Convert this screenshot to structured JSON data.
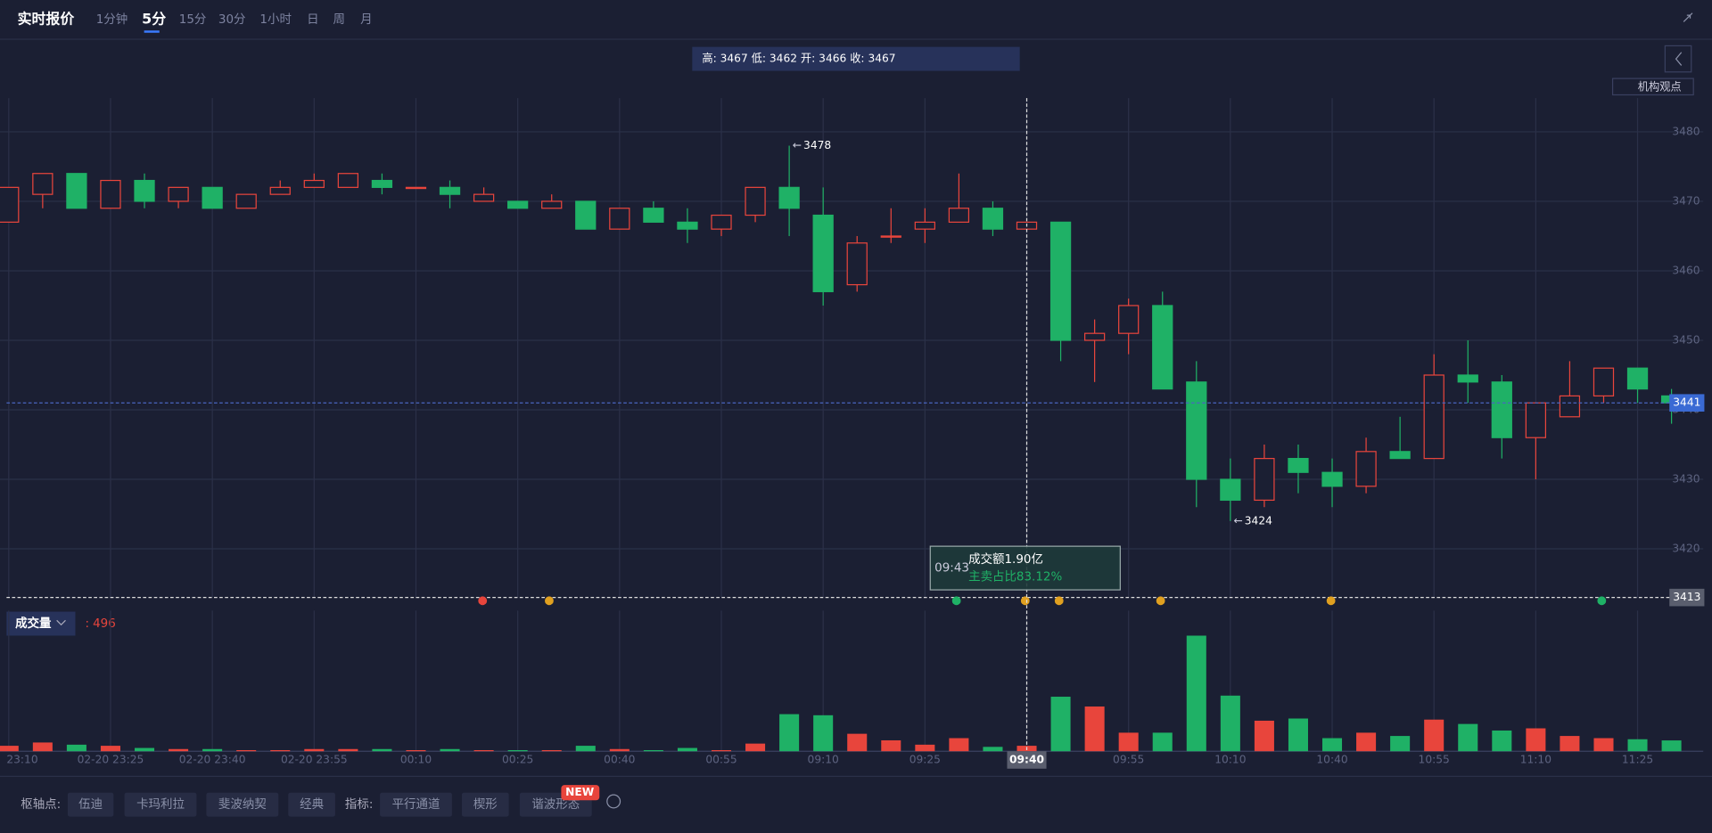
{
  "header": {
    "title": "实时报价",
    "periods": [
      "1分钟",
      "5分",
      "15分",
      "30分",
      "1小时",
      "日",
      "周",
      "月"
    ],
    "ohlc_box": "高: 3467 低: 3462 开: 3466 收: 3467",
    "views": "机构观点"
  },
  "chart_data": {
    "type": "candlestick",
    "categories": [
      "23:10",
      null,
      null,
      "02-20 23:25",
      null,
      null,
      "02-20 23:40",
      null,
      null,
      "02-20 23:55",
      null,
      null,
      "00:10",
      null,
      null,
      "00:25",
      null,
      null,
      "00:40",
      null,
      null,
      "00:55",
      null,
      null,
      "09:10",
      null,
      null,
      "09:25",
      null,
      null,
      "09:40",
      null,
      null,
      "09:55",
      null,
      null,
      "10:10",
      null,
      null,
      "10:40",
      null,
      null,
      "10:55",
      null,
      null,
      "11:10",
      null,
      null,
      "11:25",
      null
    ],
    "open": [
      3467,
      3471,
      3474,
      3469,
      3473,
      3470,
      3472,
      3469,
      3471,
      3472,
      3472,
      3473,
      3472,
      3472,
      3470,
      3470,
      3469,
      3470,
      3466,
      3469,
      3467,
      3466,
      3468,
      3472,
      3468,
      3458,
      3465,
      3466,
      3467,
      3469,
      3466,
      3467,
      3450,
      3451,
      3455,
      3444,
      3430,
      3427,
      3433,
      3431,
      3429,
      3434,
      3433,
      3445,
      3444,
      3436,
      3439,
      3442,
      3446,
      3442
    ],
    "high": [
      3472,
      3474,
      3474,
      3473,
      3474,
      3472,
      3472,
      3471,
      3473,
      3474,
      3474,
      3474,
      3472,
      3473,
      3472,
      3470,
      3471,
      3470,
      3469,
      3470,
      3469,
      3468,
      3472,
      3478,
      3472,
      3465,
      3469,
      3469,
      3474,
      3470,
      3467,
      3467,
      3453,
      3456,
      3457,
      3447,
      3433,
      3435,
      3435,
      3433,
      3436,
      3439,
      3448,
      3450,
      3445,
      3441,
      3447,
      3446,
      3446,
      3443
    ],
    "low": [
      3467,
      3469,
      3469,
      3469,
      3469,
      3469,
      3469,
      3469,
      3471,
      3472,
      3472,
      3471,
      3472,
      3469,
      3470,
      3469,
      3469,
      3466,
      3466,
      3467,
      3464,
      3465,
      3467,
      3465,
      3455,
      3457,
      3464,
      3464,
      3467,
      3465,
      3466,
      3447,
      3444,
      3448,
      3443,
      3426,
      3424,
      3426,
      3428,
      3426,
      3428,
      3433,
      3433,
      3441,
      3433,
      3430,
      3439,
      3441,
      3441,
      3438
    ],
    "close": [
      3472,
      3474,
      3469,
      3473,
      3470,
      3472,
      3469,
      3471,
      3472,
      3473,
      3474,
      3472,
      3472,
      3471,
      3471,
      3469,
      3470,
      3466,
      3469,
      3467,
      3466,
      3468,
      3472,
      3469,
      3457,
      3464,
      3465,
      3467,
      3469,
      3466,
      3467,
      3450,
      3451,
      3455,
      3443,
      3430,
      3427,
      3433,
      3431,
      3429,
      3434,
      3433,
      3445,
      3444,
      3436,
      3441,
      3442,
      3446,
      3443,
      3441
    ],
    "up_color": "#e8453c",
    "down_color": "#1fb166",
    "ylim": [
      3413,
      3485
    ],
    "yticks": [
      3420,
      3430,
      3440,
      3450,
      3460,
      3470,
      3480
    ],
    "grid": true,
    "volume": {
      "name": "成交量",
      "values": [
        250,
        400,
        300,
        250,
        150,
        100,
        100,
        50,
        50,
        100,
        100,
        100,
        50,
        100,
        50,
        50,
        50,
        250,
        100,
        50,
        150,
        50,
        350,
        1700,
        1650,
        800,
        500,
        300,
        600,
        200,
        250,
        2500,
        2050,
        850,
        850,
        5300,
        2550,
        1400,
        1500,
        600,
        850,
        700,
        1450,
        1250,
        950,
        1050,
        700,
        600,
        550,
        496
      ],
      "ylim": [
        0,
        5600
      ]
    },
    "tooltip": {
      "time": "09:43",
      "amount": "成交额1.90亿",
      "ratio": "主卖占比83.12%"
    }
  },
  "footer": {
    "pivot_label": "枢轴点:",
    "pivots": [
      "伍迪",
      "卡玛利拉",
      "斐波纳契",
      "经典"
    ],
    "indicator_label": "指标:",
    "indicators": [
      "平行通道",
      "楔形",
      "谐波形态"
    ],
    "badge": "NEW"
  }
}
